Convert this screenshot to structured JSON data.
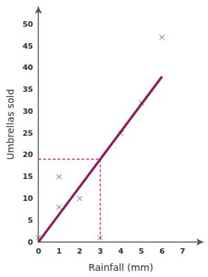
{
  "chart_data": {
    "type": "scatter",
    "x_label": "Rainfall (mm)",
    "y_label": "Umbrellas sold",
    "xlim": [
      0,
      8
    ],
    "ylim": [
      0,
      54
    ],
    "xticks": [
      0,
      1,
      2,
      3,
      4,
      5,
      6,
      7
    ],
    "yticks": [
      0,
      5,
      10,
      15,
      20,
      25,
      30,
      35,
      40,
      45,
      50
    ],
    "grid": false,
    "series": [
      {
        "type": "scatter",
        "marker": "x",
        "color": "#333333",
        "x": [
          0,
          1,
          1,
          2,
          3,
          4,
          5,
          6
        ],
        "values": [
          1,
          8,
          15,
          10,
          1,
          25,
          32,
          47
        ]
      },
      {
        "type": "line",
        "line_style": "solid",
        "color": "#95195c",
        "x": [
          0,
          6
        ],
        "values": [
          0,
          38
        ]
      },
      {
        "type": "line",
        "line_style": "dashed",
        "color": "#e0207f",
        "x": [
          0,
          3,
          3
        ],
        "values": [
          19,
          19,
          0
        ]
      }
    ]
  }
}
